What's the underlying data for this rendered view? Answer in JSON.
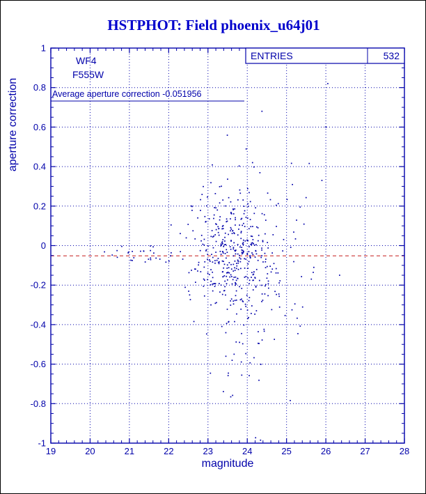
{
  "colors": {
    "plot": "#0000aa",
    "title": "#0000cc",
    "reference_red": "#cc3333",
    "background": "#ffffff"
  },
  "chart_data": {
    "type": "scatter",
    "title": "HSTPHOT: Field phoenix_u64j01",
    "xlabel": "magnitude",
    "ylabel": "aperture correction",
    "xlim": [
      19,
      28
    ],
    "ylim": [
      -1,
      1
    ],
    "grid": true,
    "detector": "WF4",
    "filter": "F555W",
    "average_label": "Average aperture correction -0.051956",
    "average_aperture_correction": -0.051956,
    "entries": 532,
    "stat_box": {
      "label": "ENTRIES",
      "value": "532"
    },
    "reference_line": {
      "y": -0.051956,
      "style": "dashed",
      "color": "#cc3333"
    },
    "x_ticks": [
      {
        "v": 19,
        "label": "19"
      },
      {
        "v": 20,
        "label": "20"
      },
      {
        "v": 21,
        "label": "21"
      },
      {
        "v": 22,
        "label": "22"
      },
      {
        "v": 23,
        "label": "23"
      },
      {
        "v": 24,
        "label": "24"
      },
      {
        "v": 25,
        "label": "25"
      },
      {
        "v": 26,
        "label": "26"
      },
      {
        "v": 27,
        "label": "27"
      },
      {
        "v": 28,
        "label": "28"
      }
    ],
    "y_ticks": [
      {
        "v": -1,
        "label": "-1"
      },
      {
        "v": -0.8,
        "label": "-0.8"
      },
      {
        "v": -0.6,
        "label": "-0.6"
      },
      {
        "v": -0.4,
        "label": "-0.4"
      },
      {
        "v": -0.2,
        "label": "-0.2"
      },
      {
        "v": 0,
        "label": "0"
      },
      {
        "v": 0.2,
        "label": "0.2"
      },
      {
        "v": 0.4,
        "label": "0.4"
      },
      {
        "v": 0.6,
        "label": "0.6"
      },
      {
        "v": 0.8,
        "label": "0.8"
      },
      {
        "v": 1,
        "label": "1"
      }
    ],
    "points": {
      "seed": 20,
      "marker_size": 1.7,
      "clusters": [
        {
          "count": 300,
          "cx": 23.65,
          "sx": 0.5,
          "cy": -0.05,
          "sy": 0.12
        },
        {
          "count": 110,
          "cx": 23.9,
          "sx": 0.65,
          "cy": -0.12,
          "sy": 0.25
        },
        {
          "count": 30,
          "cx": 23.8,
          "sx": 0.35,
          "cy": -0.5,
          "sy": 0.18
        },
        {
          "count": 35,
          "cx": 23.7,
          "sx": 0.5,
          "cy": 0.18,
          "sy": 0.12
        },
        {
          "count": 30,
          "cx": 21.5,
          "sx": 0.6,
          "cy": -0.05,
          "sy": 0.035
        },
        {
          "count": 23,
          "cx": 25.2,
          "sx": 0.35,
          "cy": -0.05,
          "sy": 0.3
        }
      ],
      "outliers": [
        [
          26.05,
          0.82
        ],
        [
          26.0,
          0.6
        ],
        [
          25.9,
          0.33
        ],
        [
          26.35,
          -0.15
        ]
      ]
    }
  }
}
